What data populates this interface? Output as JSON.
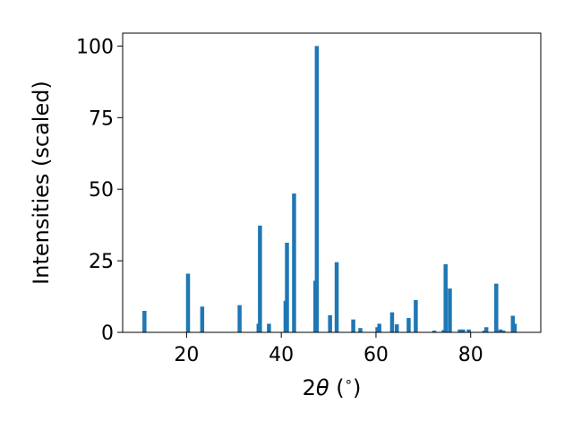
{
  "chart_data": {
    "type": "bar",
    "xlabel_prefix": "2",
    "xlabel_symbol": "θ",
    "xlabel_unit": " (",
    "xlabel_degree": "∘",
    "xlabel_suffix": ")",
    "ylabel": "Intensities (scaled)",
    "xlim": [
      6.5,
      94.8
    ],
    "ylim": [
      0,
      104.5
    ],
    "x_ticks": [
      20,
      40,
      60,
      80
    ],
    "y_ticks": [
      0,
      25,
      50,
      75,
      100
    ],
    "grid": false,
    "bar_color": "#1f77b4",
    "bars": [
      {
        "x": 11.1,
        "y": 7.5
      },
      {
        "x": 20.3,
        "y": 20.5
      },
      {
        "x": 23.3,
        "y": 9.0
      },
      {
        "x": 31.2,
        "y": 9.5
      },
      {
        "x": 35.2,
        "y": 3.0
      },
      {
        "x": 35.5,
        "y": 37.3
      },
      {
        "x": 37.4,
        "y": 3.0
      },
      {
        "x": 40.9,
        "y": 11.0
      },
      {
        "x": 41.2,
        "y": 31.3
      },
      {
        "x": 42.7,
        "y": 48.5
      },
      {
        "x": 47.2,
        "y": 18.0
      },
      {
        "x": 47.5,
        "y": 100.0
      },
      {
        "x": 50.3,
        "y": 6.0
      },
      {
        "x": 51.7,
        "y": 24.5
      },
      {
        "x": 55.2,
        "y": 4.5
      },
      {
        "x": 56.7,
        "y": 1.5
      },
      {
        "x": 60.3,
        "y": 1.8
      },
      {
        "x": 60.7,
        "y": 3.0
      },
      {
        "x": 63.4,
        "y": 7.0
      },
      {
        "x": 64.4,
        "y": 2.8
      },
      {
        "x": 66.9,
        "y": 5.0
      },
      {
        "x": 68.4,
        "y": 11.3
      },
      {
        "x": 72.3,
        "y": 0.6
      },
      {
        "x": 74.3,
        "y": 0.8
      },
      {
        "x": 74.7,
        "y": 23.8
      },
      {
        "x": 75.6,
        "y": 15.3
      },
      {
        "x": 77.7,
        "y": 1.0
      },
      {
        "x": 78.4,
        "y": 1.0
      },
      {
        "x": 79.6,
        "y": 1.0
      },
      {
        "x": 82.9,
        "y": 0.6
      },
      {
        "x": 83.3,
        "y": 1.8
      },
      {
        "x": 85.4,
        "y": 17.0
      },
      {
        "x": 86.3,
        "y": 1.0
      },
      {
        "x": 86.9,
        "y": 0.6
      },
      {
        "x": 88.9,
        "y": 5.8
      },
      {
        "x": 89.3,
        "y": 3.0
      }
    ]
  }
}
